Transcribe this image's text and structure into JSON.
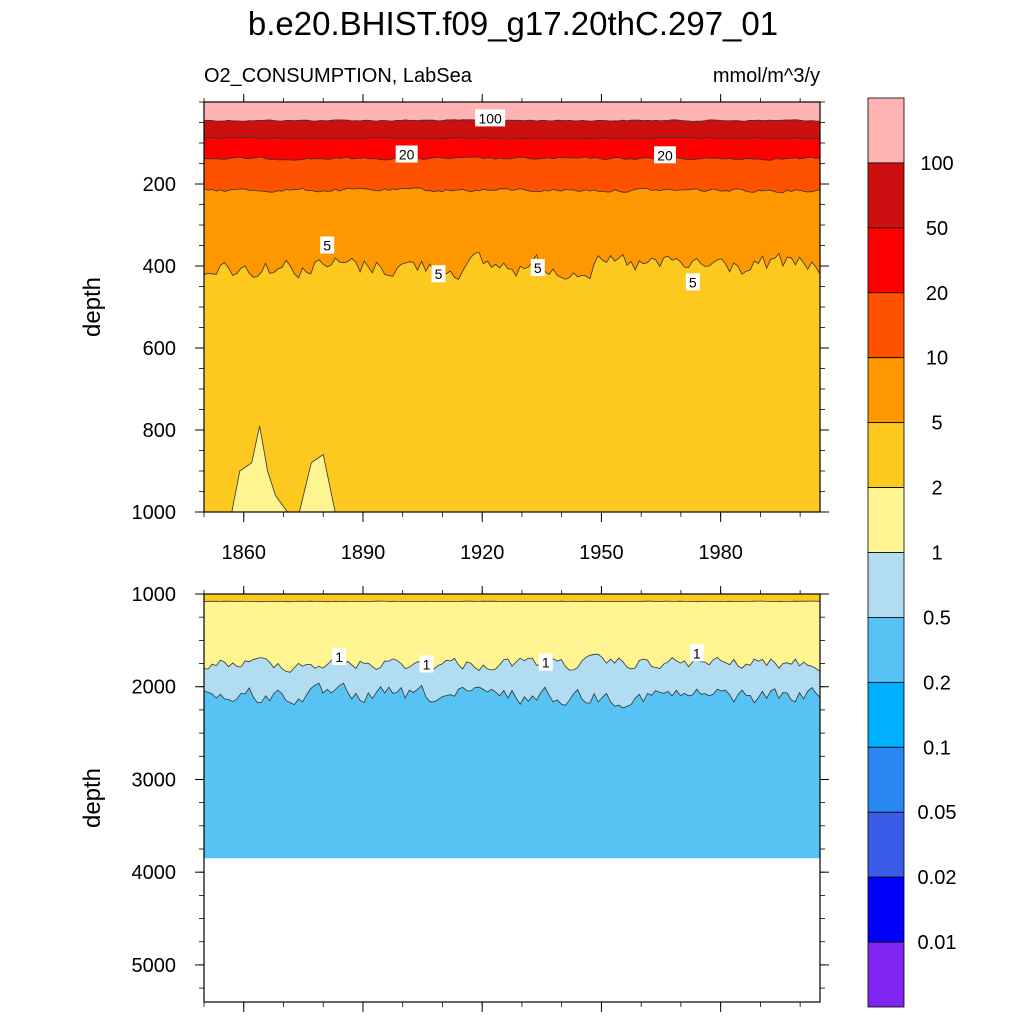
{
  "chart_data": {
    "type": "contour",
    "title": "b.e20.BHIST.f09_g17.20thC.297_01",
    "subtitle_left": "O2_CONSUMPTION, LabSea",
    "subtitle_right": "mmol/m^3/y",
    "x_range": [
      1850,
      2005
    ],
    "x_ticks": [
      1860,
      1890,
      1920,
      1950,
      1980
    ],
    "x_tick_labels": [
      "1860",
      "1890",
      "1920",
      "1950",
      "1980"
    ],
    "panels": [
      {
        "ylabel": "depth",
        "ylim": [
          0,
          1000
        ],
        "y_ticks": [
          200,
          400,
          600,
          800,
          1000
        ],
        "y_tick_labels": [
          "200",
          "400",
          "600",
          "800",
          "1000"
        ],
        "levels": [
          {
            "value": 100,
            "depth_start": 0,
            "depth_end": 45,
            "color": "#ffb3b3"
          },
          {
            "value": 50,
            "depth_start": 45,
            "depth_end": 88,
            "color": "#cc1010"
          },
          {
            "value": 20,
            "depth_start": 88,
            "depth_end": 138,
            "color": "#ff0000"
          },
          {
            "value": 10,
            "depth_start": 138,
            "depth_end": 215,
            "color": "#ff5200"
          },
          {
            "value": 5,
            "depth_start": 215,
            "depth_end": 400,
            "color": "#ff9800"
          },
          {
            "value": 2,
            "depth_start": 400,
            "depth_end": 1000,
            "color": "#fdc91e"
          }
        ],
        "contour_labels": [
          {
            "text": "100",
            "year": 1922,
            "depth": 40
          },
          {
            "text": "20",
            "year": 1901,
            "depth": 128
          },
          {
            "text": "20",
            "year": 1966,
            "depth": 130
          },
          {
            "text": "5",
            "year": 1881,
            "depth": 350
          },
          {
            "text": "5",
            "year": 1909,
            "depth": 420
          },
          {
            "text": "5",
            "year": 1934,
            "depth": 405
          },
          {
            "text": "5",
            "year": 1973,
            "depth": 440
          }
        ]
      },
      {
        "ylabel": "depth",
        "ylim": [
          1000,
          5400
        ],
        "y_ticks": [
          1000,
          2000,
          3000,
          4000,
          5000
        ],
        "y_tick_labels": [
          "1000",
          "2000",
          "3000",
          "4000",
          "5000"
        ],
        "ocean_bottom": 3850,
        "levels": [
          {
            "value": 2,
            "depth_start": 1000,
            "depth_end": 1080,
            "color": "#fdc91e"
          },
          {
            "value": 1,
            "depth_start": 1080,
            "depth_end": 1750,
            "color": "#fff590"
          },
          {
            "value": 0.5,
            "depth_start": 1750,
            "depth_end": 2100,
            "color": "#b2dcf2"
          },
          {
            "value": 0.2,
            "depth_start": 2100,
            "depth_end": 3850,
            "color": "#57c3f4"
          }
        ],
        "contour_labels": [
          {
            "text": "1",
            "year": 1884,
            "depth": 1680
          },
          {
            "text": "1",
            "year": 1906,
            "depth": 1760
          },
          {
            "text": "1",
            "year": 1936,
            "depth": 1740
          },
          {
            "text": "1",
            "year": 1974,
            "depth": 1640
          }
        ]
      }
    ],
    "colorbar": {
      "colors": [
        "#ffb3b3",
        "#cc1010",
        "#ff0000",
        "#ff5200",
        "#ff9800",
        "#fdc91e",
        "#fff590",
        "#b2dcf2",
        "#57c3f4",
        "#00b0ff",
        "#2a87f2",
        "#3a5ce6",
        "#0000ff",
        "#8024f2"
      ],
      "labels": [
        "100",
        "50",
        "20",
        "10",
        "5",
        "2",
        "1",
        "0.5",
        "0.2",
        "0.1",
        "0.05",
        "0.02",
        "0.01"
      ]
    }
  }
}
